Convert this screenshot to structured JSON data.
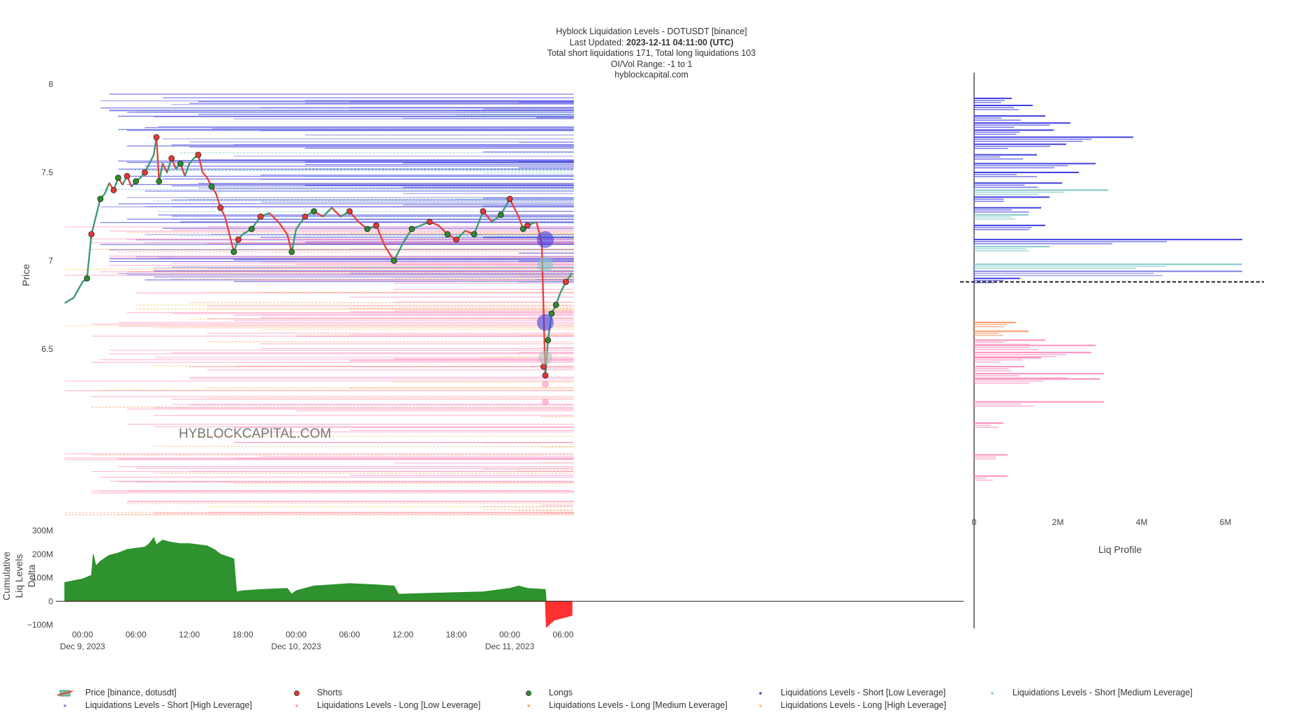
{
  "title": {
    "line1": "Hyblock Liquidation Levels - DOTUSDT [binance]",
    "updated_prefix": "Last Updated: ",
    "updated_value": "2023-12-11 04:11:00 (UTC)",
    "line3": "Total short liquidations 171, Total long liquidations 103",
    "line4": "OI/Vol Range: -1 to 1",
    "line5": "hyblockcapital.com"
  },
  "watermark": "HYBLOCKCAPITAL.COM",
  "colors": {
    "price_up": "#3d9970",
    "price_down": "#e4433f",
    "shorts": "#e53935",
    "longs": "#2e8b2e",
    "short_low": "#3f3fe0",
    "short_medium": "#7fc8c8",
    "short_high": "#7f7fe6",
    "long_low": "#ff8fc0",
    "long_medium": "#ff9966",
    "long_high": "#ffc04d",
    "delta_pos": "#2e922e",
    "delta_neg": "#ff3030"
  },
  "chart_data": [
    {
      "type": "line",
      "name": "Liquidation Levels",
      "ylabel": "Price",
      "ylim": [
        5.55,
        8.05
      ],
      "yticks": [
        "8",
        "7.5",
        "7",
        "6.5"
      ],
      "ytick_values": [
        8,
        7.5,
        7,
        6.5
      ],
      "xlim_hours": [
        -3,
        99
      ],
      "xticks": [
        {
          "h": 0,
          "label": "00:00",
          "sub": "Dec 9, 2023"
        },
        {
          "h": 6,
          "label": "06:00",
          "sub": ""
        },
        {
          "h": 12,
          "label": "12:00",
          "sub": ""
        },
        {
          "h": 18,
          "label": "18:00",
          "sub": ""
        },
        {
          "h": 24,
          "label": "00:00",
          "sub": "Dec 10, 2023"
        },
        {
          "h": 30,
          "label": "06:00",
          "sub": ""
        },
        {
          "h": 36,
          "label": "12:00",
          "sub": ""
        },
        {
          "h": 42,
          "label": "18:00",
          "sub": ""
        },
        {
          "h": 48,
          "label": "00:00",
          "sub": "Dec 11, 2023"
        },
        {
          "h": 54,
          "label": "06:00",
          "sub": ""
        }
      ],
      "price_path": [
        [
          -2,
          6.76
        ],
        [
          -1,
          6.79
        ],
        [
          0,
          6.88
        ],
        [
          0.5,
          6.9
        ],
        [
          1,
          7.15
        ],
        [
          1.5,
          7.25
        ],
        [
          2,
          7.35
        ],
        [
          2.5,
          7.38
        ],
        [
          3,
          7.44
        ],
        [
          3.5,
          7.4
        ],
        [
          4,
          7.47
        ],
        [
          4.5,
          7.43
        ],
        [
          5,
          7.48
        ],
        [
          5.5,
          7.42
        ],
        [
          6,
          7.45
        ],
        [
          6.5,
          7.47
        ],
        [
          7,
          7.5
        ],
        [
          7.5,
          7.55
        ],
        [
          8,
          7.6
        ],
        [
          8.3,
          7.7
        ],
        [
          8.6,
          7.45
        ],
        [
          9,
          7.55
        ],
        [
          9.5,
          7.5
        ],
        [
          10,
          7.58
        ],
        [
          10.5,
          7.52
        ],
        [
          11,
          7.55
        ],
        [
          11.5,
          7.48
        ],
        [
          12,
          7.55
        ],
        [
          12.5,
          7.58
        ],
        [
          13,
          7.6
        ],
        [
          13.5,
          7.5
        ],
        [
          14,
          7.47
        ],
        [
          14.5,
          7.42
        ],
        [
          15,
          7.38
        ],
        [
          15.5,
          7.3
        ],
        [
          16,
          7.25
        ],
        [
          16.5,
          7.15
        ],
        [
          17,
          7.05
        ],
        [
          17.5,
          7.12
        ],
        [
          18,
          7.15
        ],
        [
          19,
          7.18
        ],
        [
          20,
          7.25
        ],
        [
          21,
          7.27
        ],
        [
          22,
          7.22
        ],
        [
          23,
          7.15
        ],
        [
          23.5,
          7.05
        ],
        [
          24,
          7.18
        ],
        [
          25,
          7.25
        ],
        [
          26,
          7.28
        ],
        [
          27,
          7.25
        ],
        [
          28,
          7.3
        ],
        [
          29,
          7.25
        ],
        [
          30,
          7.28
        ],
        [
          31,
          7.22
        ],
        [
          32,
          7.18
        ],
        [
          33,
          7.2
        ],
        [
          34,
          7.08
        ],
        [
          35,
          7.0
        ],
        [
          35.5,
          7.05
        ],
        [
          36,
          7.1
        ],
        [
          37,
          7.18
        ],
        [
          38,
          7.2
        ],
        [
          39,
          7.22
        ],
        [
          40,
          7.2
        ],
        [
          41,
          7.15
        ],
        [
          42,
          7.12
        ],
        [
          43,
          7.17
        ],
        [
          44,
          7.15
        ],
        [
          45,
          7.28
        ],
        [
          46,
          7.22
        ],
        [
          47,
          7.26
        ],
        [
          48,
          7.35
        ],
        [
          49,
          7.25
        ],
        [
          49.5,
          7.18
        ],
        [
          50,
          7.2
        ],
        [
          51,
          7.22
        ],
        [
          51.6,
          7.1
        ],
        [
          52,
          6.35
        ],
        [
          52.3,
          6.55
        ],
        [
          52.7,
          6.7
        ],
        [
          53.2,
          6.75
        ],
        [
          53.7,
          6.82
        ],
        [
          54.3,
          6.88
        ],
        [
          55,
          6.93
        ]
      ],
      "current_price": 6.88,
      "shorts_markers": [
        [
          1,
          7.15
        ],
        [
          3.5,
          7.4
        ],
        [
          5,
          7.48
        ],
        [
          7,
          7.5
        ],
        [
          8.3,
          7.7
        ],
        [
          10,
          7.58
        ],
        [
          13,
          7.6
        ],
        [
          15.5,
          7.3
        ],
        [
          17.5,
          7.12
        ],
        [
          20,
          7.25
        ],
        [
          25,
          7.25
        ],
        [
          30,
          7.28
        ],
        [
          33,
          7.2
        ],
        [
          39,
          7.22
        ],
        [
          42,
          7.12
        ],
        [
          45,
          7.28
        ],
        [
          48,
          7.35
        ],
        [
          50,
          7.2
        ],
        [
          51.8,
          6.4
        ],
        [
          52,
          6.35
        ],
        [
          54.3,
          6.88
        ]
      ],
      "longs_markers": [
        [
          0.5,
          6.9
        ],
        [
          2,
          7.35
        ],
        [
          4,
          7.47
        ],
        [
          6,
          7.45
        ],
        [
          8.6,
          7.45
        ],
        [
          11,
          7.55
        ],
        [
          14.5,
          7.42
        ],
        [
          17,
          7.05
        ],
        [
          19,
          7.18
        ],
        [
          23.5,
          7.05
        ],
        [
          26,
          7.28
        ],
        [
          32,
          7.18
        ],
        [
          35,
          7.0
        ],
        [
          37,
          7.18
        ],
        [
          41,
          7.15
        ],
        [
          44,
          7.15
        ],
        [
          47,
          7.26
        ],
        [
          49.5,
          7.18
        ],
        [
          52.3,
          6.55
        ],
        [
          52.7,
          6.7
        ],
        [
          53.2,
          6.75
        ]
      ],
      "short_levels": {
        "start_hours": [
          2,
          3,
          4,
          5,
          6,
          7,
          8,
          8.5,
          9,
          10,
          11,
          12,
          13,
          14.5,
          17,
          20,
          25,
          30,
          36,
          42,
          45,
          49,
          51
        ],
        "price_range": [
          6.88,
          7.95
        ]
      },
      "long_levels": {
        "start_hours": [
          -2,
          1,
          2,
          3,
          4,
          5,
          6,
          8,
          10,
          12,
          14,
          17,
          20,
          24,
          30,
          35,
          45,
          49,
          51.5
        ],
        "price_range": [
          5.55,
          7.2
        ]
      },
      "extend_to_hour": 55.2
    },
    {
      "type": "area",
      "name": "Cumulative Liq Levels Delta",
      "ylabel": "Cumulative Liq Levels Delta",
      "ylim": [
        -100,
        300
      ],
      "yticks": [
        "300M",
        "200M",
        "100M",
        "0",
        "−100M"
      ],
      "ytick_values": [
        300,
        200,
        100,
        0,
        -100
      ],
      "values_hours": [
        [
          -2,
          80
        ],
        [
          0,
          95
        ],
        [
          1,
          110
        ],
        [
          1.2,
          200
        ],
        [
          1.5,
          150
        ],
        [
          2,
          170
        ],
        [
          3,
          195
        ],
        [
          4,
          205
        ],
        [
          5,
          220
        ],
        [
          6,
          225
        ],
        [
          7,
          230
        ],
        [
          7.5,
          245
        ],
        [
          8,
          270
        ],
        [
          8.3,
          240
        ],
        [
          9,
          260
        ],
        [
          10,
          250
        ],
        [
          11,
          245
        ],
        [
          12,
          245
        ],
        [
          13,
          240
        ],
        [
          14,
          235
        ],
        [
          14.8,
          220
        ],
        [
          15.5,
          200
        ],
        [
          17,
          180
        ],
        [
          17.3,
          40
        ],
        [
          18,
          45
        ],
        [
          20,
          50
        ],
        [
          23,
          55
        ],
        [
          23.5,
          30
        ],
        [
          24,
          45
        ],
        [
          26,
          65
        ],
        [
          28,
          70
        ],
        [
          30,
          75
        ],
        [
          33,
          70
        ],
        [
          35,
          65
        ],
        [
          35.5,
          30
        ],
        [
          40,
          35
        ],
        [
          45,
          40
        ],
        [
          48,
          55
        ],
        [
          49,
          65
        ],
        [
          50,
          55
        ],
        [
          52,
          50
        ],
        [
          52.1,
          -110
        ],
        [
          53,
          -80
        ],
        [
          54,
          -70
        ],
        [
          55,
          -60
        ]
      ]
    },
    {
      "type": "bar",
      "orientation": "horizontal",
      "name": "Liq Profile",
      "xlabel": "Liq Profile",
      "xticks": [
        "0",
        "2M",
        "4M",
        "6M"
      ],
      "xtick_values": [
        0,
        2,
        4,
        6
      ],
      "bars_millions": [
        {
          "price": 7.92,
          "value": 0.9,
          "kind": "short"
        },
        {
          "price": 7.88,
          "value": 1.4,
          "kind": "short"
        },
        {
          "price": 7.82,
          "value": 1.7,
          "kind": "short"
        },
        {
          "price": 7.78,
          "value": 2.3,
          "kind": "short"
        },
        {
          "price": 7.74,
          "value": 1.9,
          "kind": "short"
        },
        {
          "price": 7.7,
          "value": 3.8,
          "kind": "short"
        },
        {
          "price": 7.66,
          "value": 2.2,
          "kind": "short"
        },
        {
          "price": 7.6,
          "value": 1.5,
          "kind": "short"
        },
        {
          "price": 7.55,
          "value": 2.9,
          "kind": "short"
        },
        {
          "price": 7.5,
          "value": 2.5,
          "kind": "short"
        },
        {
          "price": 7.44,
          "value": 2.1,
          "kind": "short"
        },
        {
          "price": 7.4,
          "value": 3.2,
          "kind": "medium"
        },
        {
          "price": 7.36,
          "value": 1.8,
          "kind": "short"
        },
        {
          "price": 7.3,
          "value": 1.6,
          "kind": "short"
        },
        {
          "price": 7.26,
          "value": 1.3,
          "kind": "medium"
        },
        {
          "price": 7.2,
          "value": 1.7,
          "kind": "short"
        },
        {
          "price": 7.12,
          "value": 6.4,
          "kind": "short"
        },
        {
          "price": 7.08,
          "value": 1.8,
          "kind": "medium"
        },
        {
          "price": 6.98,
          "value": 6.4,
          "kind": "medium"
        },
        {
          "price": 6.94,
          "value": 6.4,
          "kind": "high"
        },
        {
          "price": 6.9,
          "value": 1.1,
          "kind": "short"
        },
        {
          "price": 6.65,
          "value": 1.0,
          "kind": "mediumlong"
        },
        {
          "price": 6.6,
          "value": 1.3,
          "kind": "mediumlong"
        },
        {
          "price": 6.55,
          "value": 1.7,
          "kind": "long"
        },
        {
          "price": 6.52,
          "value": 2.9,
          "kind": "highlong"
        },
        {
          "price": 6.48,
          "value": 2.8,
          "kind": "long"
        },
        {
          "price": 6.45,
          "value": 1.6,
          "kind": "long"
        },
        {
          "price": 6.4,
          "value": 1.2,
          "kind": "long"
        },
        {
          "price": 6.36,
          "value": 3.1,
          "kind": "highlong"
        },
        {
          "price": 6.33,
          "value": 3.0,
          "kind": "long"
        },
        {
          "price": 6.2,
          "value": 3.1,
          "kind": "long"
        },
        {
          "price": 6.08,
          "value": 0.7,
          "kind": "long"
        },
        {
          "price": 5.9,
          "value": 0.8,
          "kind": "long"
        },
        {
          "price": 5.78,
          "value": 0.8,
          "kind": "long"
        }
      ]
    }
  ],
  "legend": [
    {
      "label": "Price [binance, dotusdt]",
      "kind": "price"
    },
    {
      "label": "Shorts",
      "kind": "shorts"
    },
    {
      "label": "Longs",
      "kind": "longs"
    },
    {
      "label": "Liquidations Levels - Short [Low Leverage]",
      "kind": "short_low"
    },
    {
      "label": "Liquidations Levels - Short [Medium Leverage]",
      "kind": "short_medium"
    },
    {
      "label": "Liquidations Levels - Short [High Leverage]",
      "kind": "short_high"
    },
    {
      "label": "Liquidations Levels - Long [Low Leverage]",
      "kind": "long_low"
    },
    {
      "label": "Liquidations Levels - Long [Medium Leverage]",
      "kind": "long_medium"
    },
    {
      "label": "Liquidations Levels - Long [High Leverage]",
      "kind": "long_high"
    }
  ]
}
